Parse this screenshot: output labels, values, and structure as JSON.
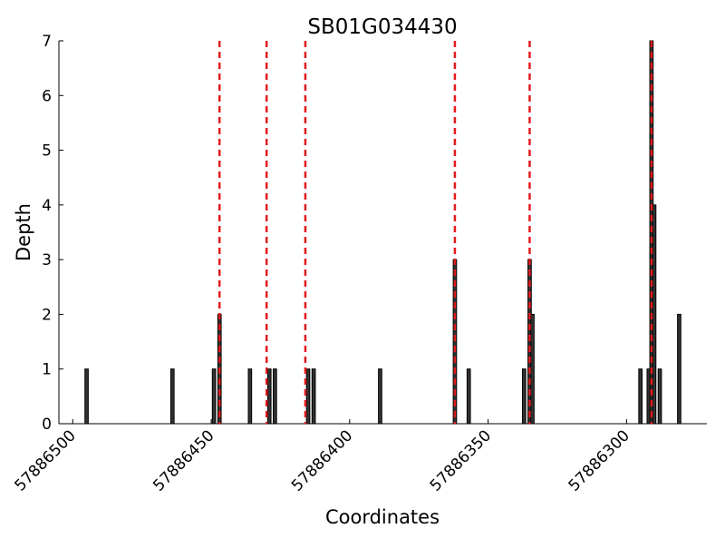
{
  "chart_data": {
    "type": "bar",
    "title": "SB01G034430",
    "x_label": "Coordinates",
    "y_label": "Depth",
    "x": [
      57886495,
      57886464,
      57886449,
      57886447,
      57886436,
      57886429,
      57886427,
      57886415,
      57886413,
      57886389,
      57886362,
      57886357,
      57886337,
      57886335,
      57886334,
      57886295,
      57886292,
      57886291,
      57886290,
      57886288,
      57886281
    ],
    "values": [
      1,
      1,
      1,
      2,
      1,
      1,
      1,
      1,
      1,
      1,
      3,
      1,
      1,
      3,
      2,
      1,
      1,
      7,
      4,
      1,
      2
    ],
    "color": "#333333",
    "markers": [
      57886447,
      57886430,
      57886416,
      57886362,
      57886335,
      57886291
    ],
    "marker_color": "#e31a1c",
    "xlim": [
      57886505,
      57886271
    ],
    "xticks": [
      57886500,
      57886450,
      57886400,
      57886350,
      57886300
    ],
    "ylim": [
      0,
      7
    ],
    "yticks": [
      0,
      1,
      2,
      3,
      4,
      5,
      6,
      7
    ]
  }
}
